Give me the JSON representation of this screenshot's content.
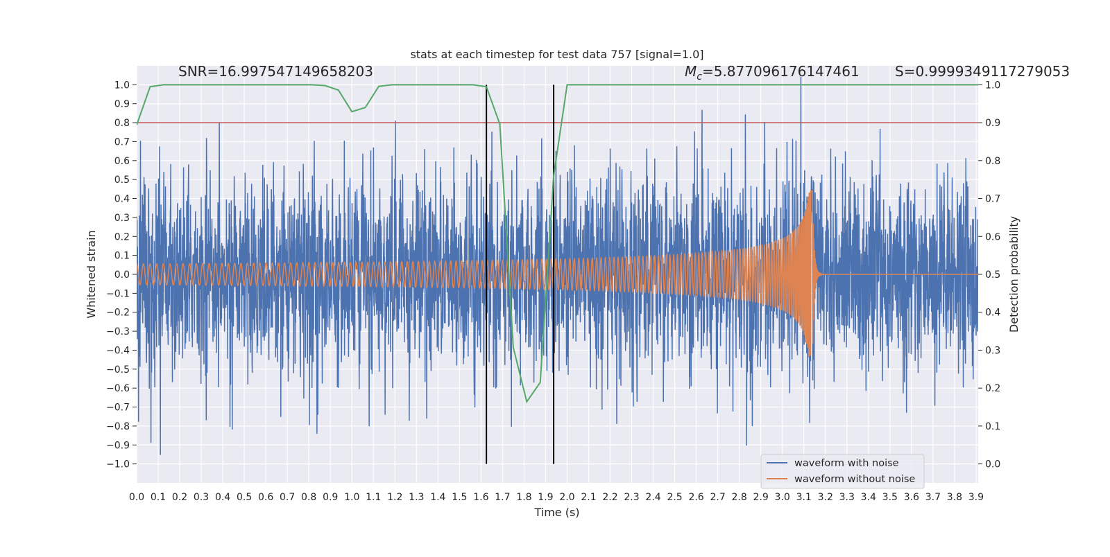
{
  "chart_data": {
    "type": "line",
    "title": "stats at each timestep for test data 757 [signal=1.0]",
    "xlabel": "Time (s)",
    "ylabel": "Whitened strain",
    "ylabel_right": "Detection probability",
    "xlim": [
      0,
      3.91
    ],
    "ylim": [
      -1.1,
      1.1
    ],
    "ylim_right": [
      -0.05,
      1.05
    ],
    "grid": true,
    "x_ticks": [
      0.0,
      0.1,
      0.2,
      0.3,
      0.4,
      0.5,
      0.6,
      0.7,
      0.8,
      0.9,
      1.0,
      1.1,
      1.2,
      1.3,
      1.4,
      1.5,
      1.6,
      1.7,
      1.8,
      1.9,
      2.0,
      2.1,
      2.2,
      2.3,
      2.4,
      2.5,
      2.6,
      2.7,
      2.8,
      2.9,
      3.0,
      3.1,
      3.2,
      3.3,
      3.4,
      3.5,
      3.6,
      3.7,
      3.8,
      3.9
    ],
    "x_tick_labels": [
      "0.0",
      "0.1",
      "0.2",
      "0.3",
      "0.4",
      "0.5",
      "0.6",
      "0.7",
      "0.8",
      "0.9",
      "1.0",
      "1.1",
      "1.2",
      "1.3",
      "1.4",
      "1.5",
      "1.6",
      "1.7",
      "1.8",
      "1.9",
      "2.0",
      "2.1",
      "2.2",
      "2.3",
      "2.4",
      "2.5",
      "2.6",
      "2.7",
      "2.8",
      "2.9",
      "3.0",
      "3.1",
      "3.2",
      "3.3",
      "3.4",
      "3.5",
      "3.6",
      "3.7",
      "3.8",
      "3.9"
    ],
    "y_ticks": [
      -1.0,
      -0.9,
      -0.8,
      -0.7,
      -0.6,
      -0.5,
      -0.4,
      -0.3,
      -0.2,
      -0.1,
      0.0,
      0.1,
      0.2,
      0.3,
      0.4,
      0.5,
      0.6,
      0.7,
      0.8,
      0.9,
      1.0
    ],
    "y_tick_labels": [
      "−1.0",
      "−0.9",
      "−0.8",
      "−0.7",
      "−0.6",
      "−0.5",
      "−0.4",
      "−0.3",
      "−0.2",
      "−0.1",
      "0.0",
      "0.1",
      "0.2",
      "0.3",
      "0.4",
      "0.5",
      "0.6",
      "0.7",
      "0.8",
      "0.9",
      "1.0"
    ],
    "y_right_ticks": [
      0.0,
      0.1,
      0.2,
      0.3,
      0.4,
      0.5,
      0.6,
      0.7,
      0.8,
      0.9,
      1.0
    ],
    "y_right_tick_labels": [
      "0.0",
      "0.1",
      "0.2",
      "0.3",
      "0.4",
      "0.5",
      "0.6",
      "0.7",
      "0.8",
      "0.9",
      "1.0"
    ],
    "series": [
      {
        "name": "waveform with noise",
        "axis": "left",
        "color": "#4C72B0",
        "model": {
          "kind": "noise_plus_signal",
          "seed": 757,
          "noise_std": 0.19,
          "samples": 4096
        }
      },
      {
        "name": "waveform without noise",
        "axis": "left",
        "color": "#DD8452",
        "model": {
          "kind": "chirp",
          "f0_hz": 32,
          "amp0": 0.055,
          "t_merger": 3.14,
          "peak_amp": 0.45,
          "samples": 8192
        }
      },
      {
        "name": "detection probability",
        "axis": "right",
        "color": "#55A868",
        "t_step": 0.0625,
        "values": [
          0.894,
          0.995,
          1,
          1,
          1,
          1,
          1,
          1,
          1,
          1,
          1,
          1,
          1,
          1,
          0.998,
          0.986,
          0.929,
          0.94,
          0.996,
          1,
          1,
          1,
          1,
          1,
          1,
          1,
          0.995,
          0.896,
          0.307,
          0.164,
          0.215,
          0.76,
          1,
          1,
          1,
          1,
          1,
          1,
          1,
          1,
          1,
          1,
          1,
          1,
          1,
          1,
          1,
          1,
          1,
          1,
          1,
          1,
          1,
          1,
          1,
          1,
          1,
          1,
          1,
          1,
          1,
          1,
          1,
          1
        ]
      }
    ],
    "threshold": {
      "axis": "left",
      "value": 0.8,
      "color": "#C44E52"
    },
    "vlines": [
      {
        "x": 1.625,
        "color": "#000000"
      },
      {
        "x": 1.9375,
        "color": "#000000"
      }
    ],
    "annotations": {
      "snr": "SNR=16.997547149658203",
      "mc_symbol": "M",
      "mc_sub": "c",
      "mc_value": "=5.877096176147461",
      "s": "S=0.9999349117279053"
    },
    "legend": {
      "position": "lower-right",
      "entries": [
        "waveform with noise",
        "waveform without noise"
      ]
    }
  }
}
